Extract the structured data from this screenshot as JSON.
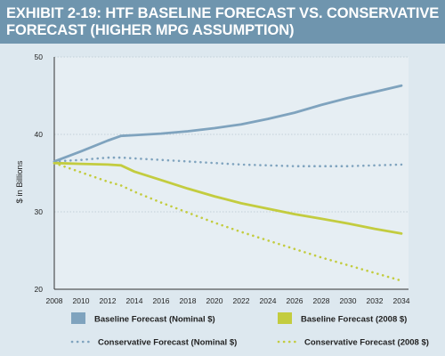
{
  "header": {
    "line1": "EXHIBIT 2-19: HTF BASELINE FORECAST VS. CONSERVATIVE",
    "line2": "FORECAST (HIGHER MPG ASSUMPTION)"
  },
  "colors": {
    "header_bg": "#6f95ae",
    "chart_bg": "#dde8ef",
    "blue": "#7fa3be",
    "green": "#c3cc3f"
  },
  "chart_data": {
    "type": "line",
    "title": "EXHIBIT 2-19: HTF BASELINE FORECAST VS. CONSERVATIVE FORECAST (HIGHER MPG ASSUMPTION)",
    "xlabel": "",
    "ylabel": "$ in Billions",
    "ylim": [
      20,
      50
    ],
    "xlim": [
      2008,
      2034
    ],
    "yticks": [
      "20",
      "30",
      "40",
      "50"
    ],
    "xticks": [
      "2008",
      "2010",
      "2012",
      "2014",
      "2016",
      "2018",
      "2020",
      "2022",
      "2024",
      "2026",
      "2028",
      "2030",
      "2032",
      "2034"
    ],
    "legend_position": "bottom",
    "grid": "horizontal dotted",
    "series": [
      {
        "name": "Baseline Forecast (Nominal $)",
        "style": "solid",
        "color": "#7fa3be",
        "points": [
          [
            2008,
            36.5
          ],
          [
            2010,
            37.8
          ],
          [
            2012,
            39.2
          ],
          [
            2013,
            39.8
          ],
          [
            2014,
            39.9
          ],
          [
            2016,
            40.1
          ],
          [
            2018,
            40.4
          ],
          [
            2020,
            40.8
          ],
          [
            2022,
            41.3
          ],
          [
            2024,
            42.0
          ],
          [
            2026,
            42.8
          ],
          [
            2028,
            43.8
          ],
          [
            2030,
            44.7
          ],
          [
            2032,
            45.5
          ],
          [
            2034,
            46.3
          ]
        ]
      },
      {
        "name": "Baseline Forecast (2008 $)",
        "style": "solid",
        "color": "#c3cc3f",
        "points": [
          [
            2008,
            36.3
          ],
          [
            2010,
            36.2
          ],
          [
            2012,
            36.1
          ],
          [
            2013,
            36.0
          ],
          [
            2014,
            35.2
          ],
          [
            2016,
            34.1
          ],
          [
            2018,
            33.0
          ],
          [
            2020,
            32.0
          ],
          [
            2022,
            31.1
          ],
          [
            2024,
            30.4
          ],
          [
            2026,
            29.7
          ],
          [
            2028,
            29.1
          ],
          [
            2030,
            28.5
          ],
          [
            2032,
            27.8
          ],
          [
            2034,
            27.2
          ]
        ]
      },
      {
        "name": "Conservative Forecast (Nominal $)",
        "style": "dotted",
        "color": "#7fa3be",
        "points": [
          [
            2008,
            36.5
          ],
          [
            2010,
            36.7
          ],
          [
            2012,
            37.0
          ],
          [
            2013,
            37.0
          ],
          [
            2014,
            36.9
          ],
          [
            2016,
            36.7
          ],
          [
            2018,
            36.5
          ],
          [
            2020,
            36.3
          ],
          [
            2022,
            36.1
          ],
          [
            2024,
            36.0
          ],
          [
            2026,
            35.9
          ],
          [
            2028,
            35.9
          ],
          [
            2030,
            35.9
          ],
          [
            2032,
            36.0
          ],
          [
            2034,
            36.1
          ]
        ]
      },
      {
        "name": "Conservative Forecast (2008 $)",
        "style": "dotted",
        "color": "#c3cc3f",
        "points": [
          [
            2008,
            36.3
          ],
          [
            2010,
            35.1
          ],
          [
            2012,
            33.9
          ],
          [
            2013,
            33.4
          ],
          [
            2014,
            32.6
          ],
          [
            2016,
            31.2
          ],
          [
            2018,
            29.9
          ],
          [
            2020,
            28.6
          ],
          [
            2022,
            27.4
          ],
          [
            2024,
            26.3
          ],
          [
            2026,
            25.2
          ],
          [
            2028,
            24.1
          ],
          [
            2030,
            23.1
          ],
          [
            2032,
            22.1
          ],
          [
            2034,
            21.1
          ]
        ]
      }
    ]
  }
}
